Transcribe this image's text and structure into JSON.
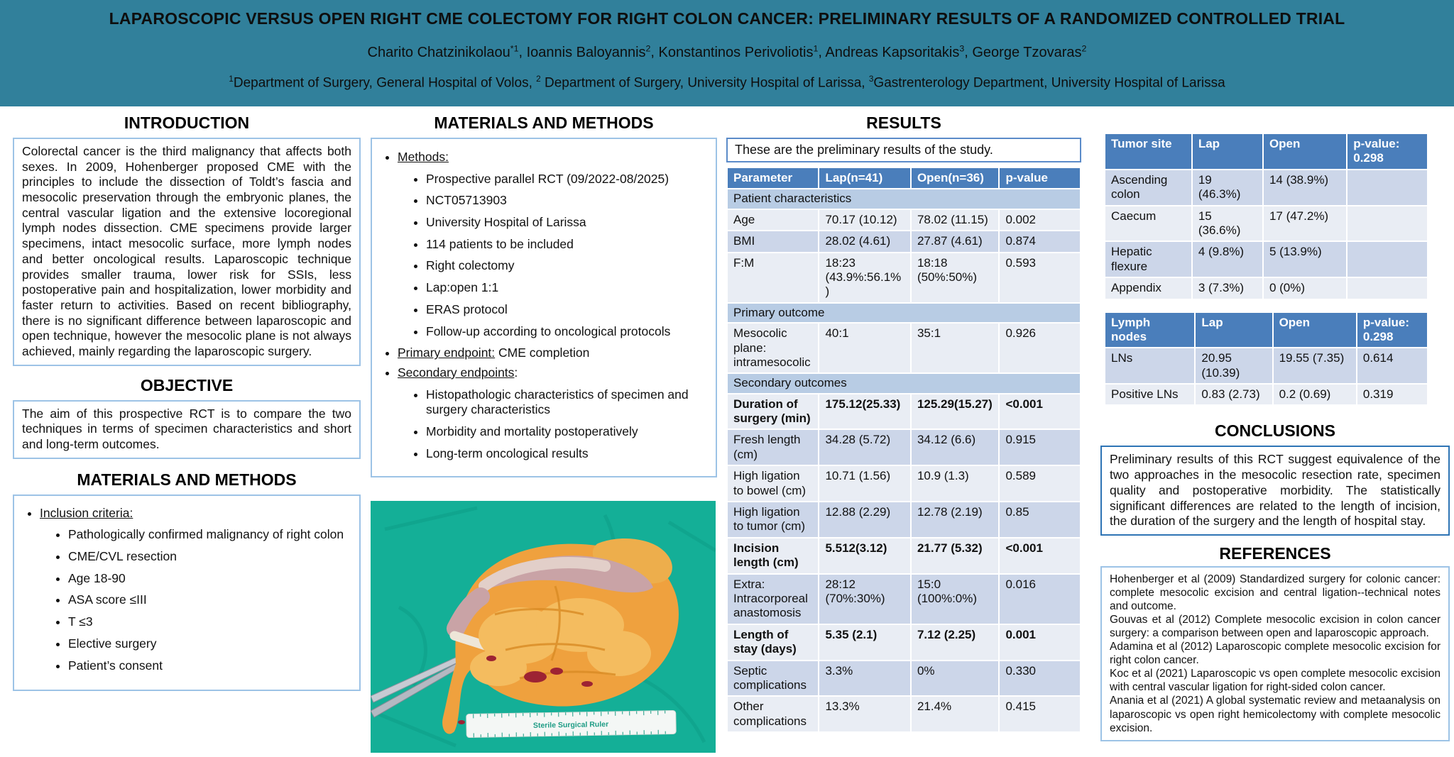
{
  "colors": {
    "banner_bg": "#31809B",
    "table_header_bg": "#4A7EBB",
    "section_row_bg": "#B8CCE4",
    "row_shade_light": "#E9EDF4",
    "row_shade_dark": "#CCD6E9",
    "box_border": "#9DC3E6",
    "conclusions_border": "#2E74B5",
    "photo_drape": "#14AF97"
  },
  "banner": {
    "title": "LAPAROSCOPIC VERSUS OPEN RIGHT CME COLECTOMY FOR RIGHT COLON CANCER: PRELIMINARY RESULTS OF A RANDOMIZED CONTROLLED TRIAL",
    "authors": [
      {
        "name": "Charito Chatzinikolaou",
        "sup": "*1"
      },
      {
        "name": "Ioannis Baloyannis",
        "sup": "2"
      },
      {
        "name": "Konstantinos Perivoliotis",
        "sup": "1"
      },
      {
        "name": "Andreas Kapsoritakis",
        "sup": "3"
      },
      {
        "name": "George Tzovaras",
        "sup": "2"
      }
    ],
    "affiliations": [
      {
        "sup": "1",
        "text": "Department of Surgery, General Hospital of Volos, "
      },
      {
        "sup": "2",
        "text": " Department of Surgery, University Hospital of Larissa, "
      },
      {
        "sup": "3",
        "text": "Gastrenterology Department, University Hospital of Larissa"
      }
    ]
  },
  "introduction": {
    "heading": "INTRODUCTION",
    "text": "Colorectal cancer is the third malignancy that affects both sexes. In 2009, Hohenberger proposed CME with the principles to include the dissection of Toldt’s fascia and mesocolic preservation through the embryonic planes, the central vascular ligation and the extensive locoregional lymph nodes dissection. CME specimens provide larger specimens, intact mesocolic surface, more lymph nodes and better oncological results. Laparoscopic technique provides smaller trauma, lower risk for SSIs, less postoperative pain and hospitalization, lower morbidity and faster return to activities. Based on recent bibliography, there is no significant difference between laparoscopic and open technique, however the mesocolic plane is not always achieved, mainly regarding the laparoscopic surgery."
  },
  "objective": {
    "heading": "OBJECTIVE",
    "text": "The aim of this prospective RCT is to compare the two techniques in terms of specimen characteristics and short and long-term outcomes."
  },
  "materials_left": {
    "heading": "MATERIALS AND METHODS",
    "bullets": [
      {
        "head": "Inclusion criteria:",
        "sub": [
          "Pathologically confirmed malignancy of right colon",
          "CME/CVL resection",
          "Age 18-90",
          "ASA score ≤III",
          "T ≤3",
          "Elective surgery",
          "Patient’s consent"
        ]
      }
    ]
  },
  "materials_mid": {
    "heading": "MATERIALS AND METHODS",
    "bullets": [
      {
        "head": "Methods:",
        "sub": [
          "Prospective parallel  RCT (09/2022-08/2025)",
          "NCT05713903",
          "University Hospital of Larissa",
          "114 patients to be included",
          "Right colectomy",
          "Lap:open 1:1",
          "ERAS protocol",
          "Follow-up according to oncological protocols"
        ]
      },
      {
        "head": "Primary endpoint:",
        "rest": " CME completion"
      },
      {
        "head": "Secondary endpoints",
        "rest": ":",
        "sub": [
          "Histopathologic characteristics of specimen and surgery characteristics",
          "Morbidity and mortality postoperatively",
          "Long-term oncological results"
        ]
      }
    ]
  },
  "results": {
    "heading": "RESULTS",
    "note": "These are the preliminary results of the study."
  },
  "results_table": {
    "columns": [
      "Parameter",
      "Lap(n=41)",
      "Open(n=36)",
      "p-value"
    ],
    "rows": [
      {
        "section": "Patient characteristics"
      },
      {
        "cells": [
          "Age",
          "70.17 (10.12)",
          "78.02 (11.15)",
          "0.002"
        ]
      },
      {
        "cells": [
          "BMI",
          "28.02 (4.61)",
          "27.87 (4.61)",
          "0.874"
        ]
      },
      {
        "cells": [
          "F:M",
          "18:23 (43.9%:56.1%)",
          "18:18 (50%:50%)",
          "0.593"
        ]
      },
      {
        "section": "Primary outcome"
      },
      {
        "cells": [
          "Mesocolic plane: intramesocolic",
          "40:1",
          "35:1",
          "0.926"
        ]
      },
      {
        "section": "Secondary outcomes"
      },
      {
        "cells": [
          "Duration of surgery (min)",
          "175.12(25.33)",
          "125.29(15.27)",
          "<0.001"
        ],
        "bold": true
      },
      {
        "cells": [
          "Fresh length (cm)",
          "34.28 (5.72)",
          "34.12 (6.6)",
          "0.915"
        ]
      },
      {
        "cells": [
          "High ligation to bowel (cm)",
          "10.71 (1.56)",
          "10.9 (1.3)",
          "0.589"
        ]
      },
      {
        "cells": [
          "High ligation to tumor (cm)",
          "12.88 (2.29)",
          "12.78 (2.19)",
          "0.85"
        ]
      },
      {
        "cells": [
          "Incision length (cm)",
          "5.512(3.12)",
          "21.77 (5.32)",
          "<0.001"
        ],
        "bold": true
      },
      {
        "cells": [
          "Extra: Intracorporeal anastomosis",
          "28:12 (70%:30%)",
          "15:0 (100%:0%)",
          "0.016"
        ]
      },
      {
        "cells": [
          "Length of stay (days)",
          "5.35 (2.1)",
          "7.12 (2.25)",
          "0.001"
        ],
        "bold": true
      },
      {
        "cells": [
          "Septic complications",
          "3.3%",
          "0%",
          "0.330"
        ]
      },
      {
        "cells": [
          "Other complications",
          "13.3%",
          "21.4%",
          "0.415"
        ]
      }
    ]
  },
  "tumor_table": {
    "columns": [
      "Tumor site",
      "Lap",
      "Open",
      "p-value: 0.298"
    ],
    "rows": [
      {
        "cells": [
          "Ascending colon",
          "19 (46.3%)",
          "14 (38.9%)",
          ""
        ]
      },
      {
        "cells": [
          "Caecum",
          "15 (36.6%)",
          "17 (47.2%)",
          ""
        ]
      },
      {
        "cells": [
          "Hepatic flexure",
          "4 (9.8%)",
          "5 (13.9%)",
          ""
        ]
      },
      {
        "cells": [
          "Appendix",
          "3 (7.3%)",
          "0 (0%)",
          ""
        ]
      }
    ]
  },
  "lymph_table": {
    "columns": [
      "Lymph nodes",
      "Lap",
      "Open",
      "p-value: 0.298"
    ],
    "rows": [
      {
        "cells": [
          "LNs",
          "20.95 (10.39)",
          "19.55 (7.35)",
          "0.614"
        ]
      },
      {
        "cells": [
          "Positive LNs",
          "0.83 (2.73)",
          "0.2 (0.69)",
          "0.319"
        ]
      }
    ]
  },
  "conclusions": {
    "heading": "CONCLUSIONS",
    "text": "Preliminary results of this RCT suggest equivalence of the two approaches in the mesocolic resection rate, specimen quality and postoperative morbidity.  The statistically significant differences are related to the length of incision, the duration of the surgery and the length of hospital stay."
  },
  "references": {
    "heading": "REFERENCES",
    "items": [
      "Hohenberger et al (2009) Standardized surgery for colonic cancer: complete mesocolic excision and central ligation--technical notes and outcome.",
      "Gouvas  et al (2012) Complete mesocolic excision in colon cancer surgery: a comparison between open and laparoscopic approach.",
      "Adamina et al (2012) Laparoscopic complete mesocolic excision for right colon cancer.",
      "Koc et al (2021) Laparoscopic vs open complete mesocolic excision with central vascular ligation for right-sided colon cancer.",
      "Anania et al (2021) A global systematic review and metaanalysis on laparoscopic vs open right hemicolectomy with complete mesocolic excision."
    ]
  },
  "photo": {
    "description": "surgical specimen of right colon with mesocolic fat on green drape",
    "ruler_label": "Sterile Surgical Ruler"
  }
}
